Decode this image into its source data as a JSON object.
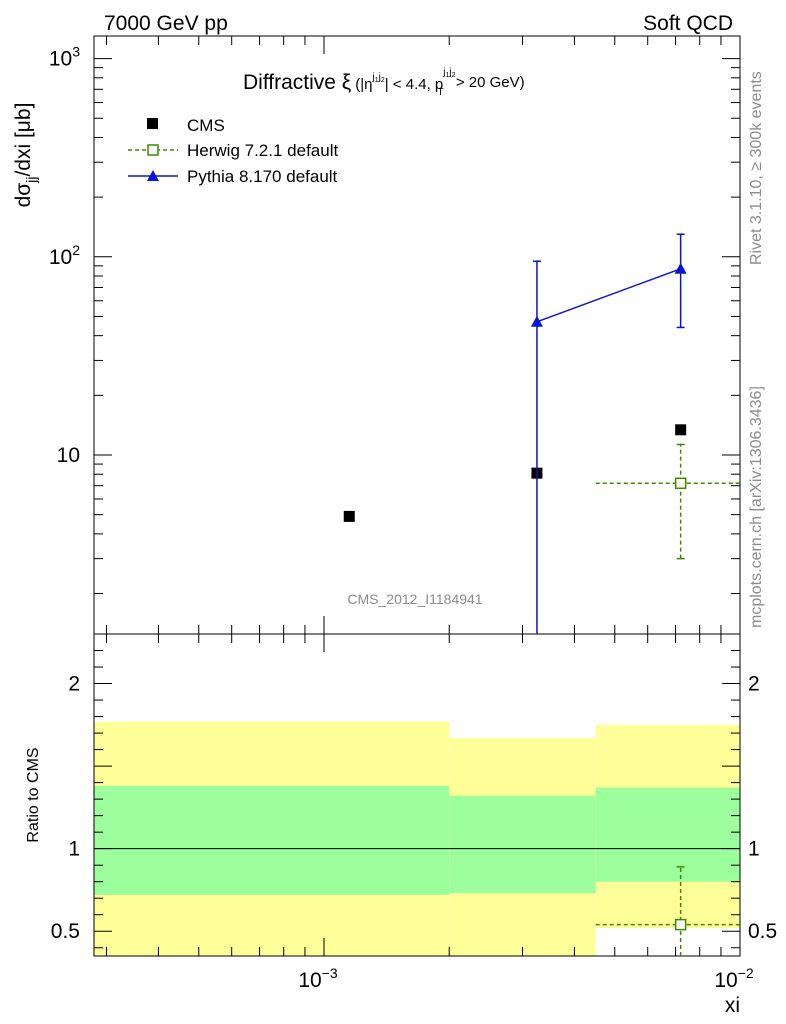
{
  "header": {
    "left": "7000 GeV pp",
    "right": "Soft QCD"
  },
  "side_labels": {
    "rivet": "Rivet 3.1.10, ≥ 300k events",
    "mcplots": "mcplots.cern.ch [arXiv:1306.3436]"
  },
  "watermark": "CMS_2012_I1184941",
  "main_title": {
    "prefix": "Diffractive ξ",
    "cond1_open": "(|η",
    "cond1_sup": "j",
    "cond1_sup_sub": "1",
    "cond1_sup2": "j",
    "cond1_sup2_sub": "2",
    "cond1_close": "| < 4.4, p",
    "pt_sup": "j",
    "pt_sup_sub": "1",
    "pt_sup2": "j",
    "pt_sup2_sub": "2",
    "pt_sub": "T",
    "cond2": " > 20 GeV)"
  },
  "colors": {
    "cms": "#000000",
    "herwig": "#3d8a00",
    "pythia": "#0a14d2",
    "band_inner": "#9cff9c",
    "band_outer": "#ffff99"
  },
  "chart_data": [
    {
      "type": "scatter",
      "panel": "main",
      "xscale": "log",
      "yscale": "log",
      "xlim": [
        0.00028,
        0.01
      ],
      "ylim": [
        1.25,
        1300
      ],
      "ylabel": {
        "main": "dσ",
        "sub": "jj",
        "rest": "/dxi [μb]"
      },
      "yticks": [
        {
          "value": 10,
          "label": "10",
          "base": "",
          "exp": ""
        },
        {
          "value": 100,
          "label": "",
          "base": "10",
          "exp": "2"
        },
        {
          "value": 1000,
          "label": "",
          "base": "10",
          "exp": "3"
        }
      ],
      "legend_position": "top-left",
      "series": [
        {
          "name": "CMS",
          "marker": "filled-square",
          "points": [
            {
              "x": 0.00115,
              "y": 4.9,
              "xlo": 0.00115,
              "xhi": 0.00115,
              "ylo": 4.9,
              "yhi": 4.9
            },
            {
              "x": 0.00325,
              "y": 8.1,
              "xlo": 0.00325,
              "xhi": 0.00325,
              "ylo": 8.1,
              "yhi": 8.1
            },
            {
              "x": 0.0072,
              "y": 13.4,
              "xlo": 0.0072,
              "xhi": 0.0072,
              "ylo": 13.4,
              "yhi": 13.4
            }
          ]
        },
        {
          "name": "Herwig 7.2.1 default",
          "marker": "open-square",
          "line": "dashed",
          "points": [
            {
              "x": 0.0072,
              "y": 7.2,
              "xlo": 0.0045,
              "xhi": 0.01,
              "ylo": 3.0,
              "yhi": 11.3
            }
          ]
        },
        {
          "name": "Pythia 8.170 default",
          "marker": "filled-triangle",
          "line": "solid",
          "points": [
            {
              "x": 0.00325,
              "y": 47,
              "xlo": 0.00325,
              "xhi": 0.00325,
              "ylo": 1.25,
              "yhi": 95
            },
            {
              "x": 0.0072,
              "y": 87,
              "xlo": 0.0072,
              "xhi": 0.0072,
              "ylo": 44,
              "yhi": 130
            }
          ]
        }
      ]
    },
    {
      "type": "scatter",
      "panel": "ratio",
      "xscale": "log",
      "yscale": "linear",
      "xlim": [
        0.00028,
        0.01
      ],
      "ylim": [
        0.35,
        2.3
      ],
      "ylabel": "Ratio to CMS",
      "xlabel": "xi",
      "yticks": [
        {
          "value": 0.5,
          "label": "0.5"
        },
        {
          "value": 1,
          "label": "1"
        },
        {
          "value": 2,
          "label": "2"
        }
      ],
      "xticks": [
        {
          "value": 0.001,
          "base": "10",
          "exp": "−3"
        },
        {
          "value": 0.01,
          "base": "10",
          "exp": "−2"
        }
      ],
      "reference_line": 1,
      "bands": [
        {
          "xlo": 0.00028,
          "xhi": 0.002,
          "inner_lo": 0.72,
          "inner_hi": 1.38,
          "outer_lo": 0.35,
          "outer_hi": 1.77
        },
        {
          "xlo": 0.002,
          "xhi": 0.0045,
          "inner_lo": 0.73,
          "inner_hi": 1.32,
          "outer_lo": 0.35,
          "outer_hi": 1.67
        },
        {
          "xlo": 0.0045,
          "xhi": 0.01,
          "inner_lo": 0.8,
          "inner_hi": 1.37,
          "outer_lo": 0.52,
          "outer_hi": 1.75
        }
      ],
      "series": [
        {
          "name": "Herwig 7.2.1 default",
          "marker": "open-square",
          "line": "dashed",
          "points": [
            {
              "x": 0.0072,
              "y": 0.54,
              "xlo": 0.0045,
              "xhi": 0.01,
              "ylo": 0.35,
              "yhi": 0.89
            }
          ]
        }
      ]
    }
  ]
}
